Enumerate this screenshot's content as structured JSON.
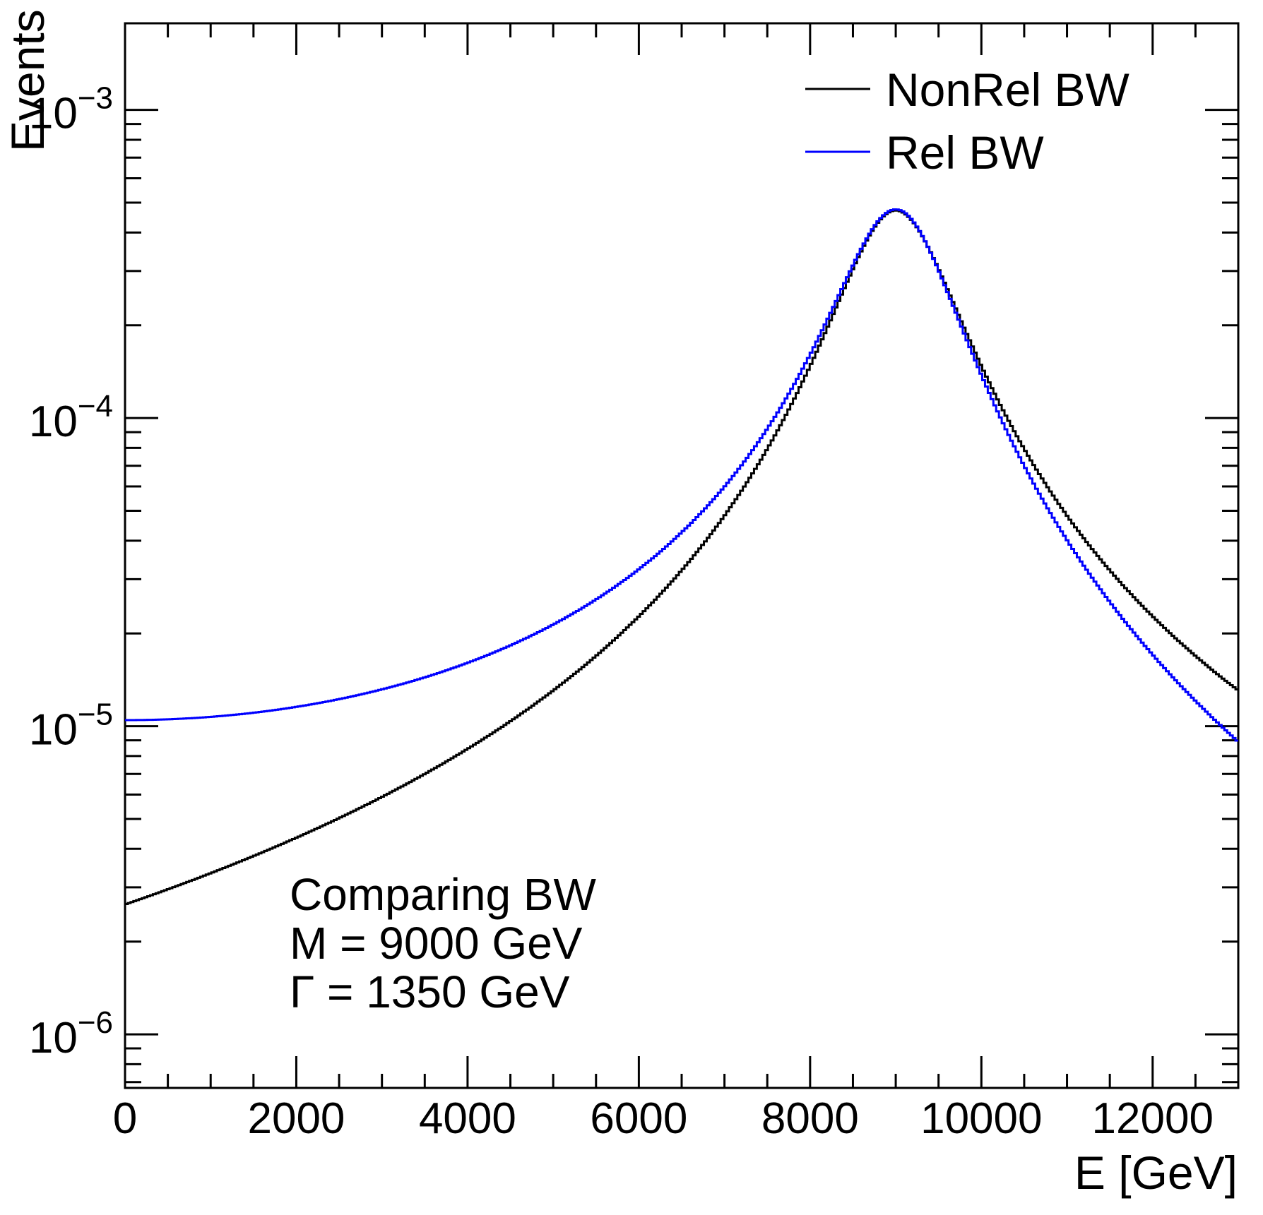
{
  "figure": {
    "background": "#ffffff",
    "frame_color": "#000000"
  },
  "chart_data": {
    "type": "line",
    "title": "",
    "xlabel": "E [GeV]",
    "ylabel": "Events",
    "x_scale": "linear",
    "y_scale": "log",
    "xlim": [
      0,
      13000
    ],
    "ylim": [
      6.7e-07,
      0.00191
    ],
    "grid": false,
    "x_major_ticks": [
      0,
      2000,
      4000,
      6000,
      8000,
      10000,
      12000
    ],
    "x_tick_labels": [
      "0",
      "2000",
      "4000",
      "6000",
      "8000",
      "10000",
      "12000"
    ],
    "x_minor_step": 500,
    "y_major_ticks": [
      0.001,
      0.0001,
      1e-05,
      1e-06
    ],
    "y_tick_labels": [
      {
        "base": "10",
        "exponent": "−3",
        "value": 0.001
      },
      {
        "base": "10",
        "exponent": "−4",
        "value": 0.0001
      },
      {
        "base": "10",
        "exponent": "−5",
        "value": 1e-05
      },
      {
        "base": "10",
        "exponent": "−6",
        "value": 1e-06
      }
    ],
    "legend": {
      "position": "top-right",
      "entries": [
        {
          "label": "NonRel BW",
          "color": "#000000"
        },
        {
          "label": "Rel BW",
          "color": "#0000ff"
        }
      ]
    },
    "annotation": {
      "line1": "Comparing BW",
      "line2": "M = 9000 GeV",
      "line3": "Γ = 1350 GeV"
    },
    "peak": {
      "x": 9000,
      "y": 0.000475
    },
    "series": [
      {
        "name": "NonRel BW",
        "color": "#000000",
        "formula": "nonrel_bw_pdf",
        "M": 9000,
        "Gamma": 1350,
        "bins": 400,
        "style": "step-histogram",
        "x": [
          0,
          1000,
          2000,
          3000,
          4000,
          5000,
          6000,
          7000,
          8000,
          9000,
          10000,
          11000,
          12000,
          13000
        ],
        "y": [
          2.64e-06,
          3.33e-06,
          4.34e-06,
          5.89e-06,
          8.44e-06,
          1.31e-05,
          2.27e-05,
          4.82e-05,
          0.000148,
          0.000472,
          0.000148,
          4.82e-05,
          2.27e-05,
          1.31e-05
        ]
      },
      {
        "name": "Rel BW",
        "color": "#0000ff",
        "formula": "rel_bw_pdf",
        "M": 9000,
        "Gamma": 1350,
        "bins": 400,
        "style": "step-histogram",
        "x": [
          0,
          1000,
          2000,
          3000,
          4000,
          5000,
          6000,
          7000,
          8000,
          9000,
          10000,
          11000,
          12000,
          13000
        ],
        "y": [
          1.05e-05,
          1.07e-05,
          1.16e-05,
          1.32e-05,
          1.61e-05,
          2.14e-05,
          3.23e-05,
          5.99e-05,
          0.000161,
          0.000476,
          0.000138,
          4.02e-05,
          1.71e-05,
          8.9e-06
        ]
      }
    ]
  }
}
